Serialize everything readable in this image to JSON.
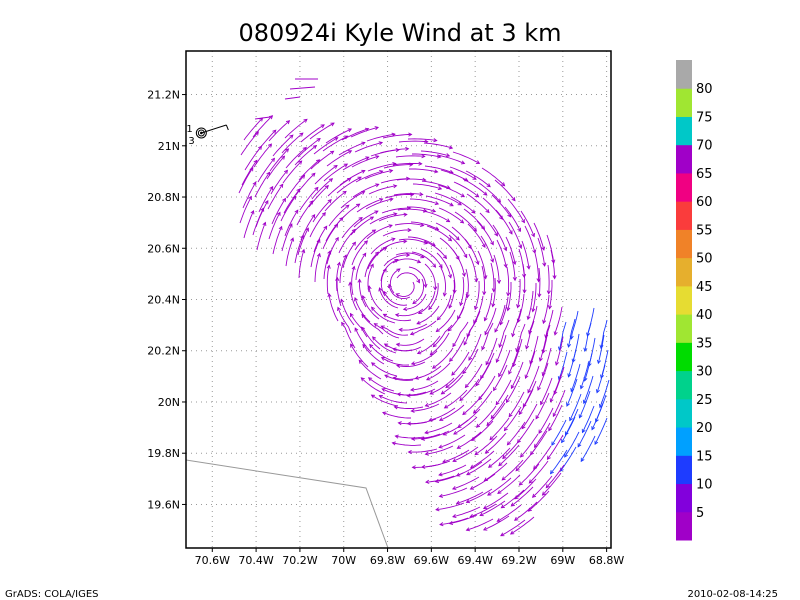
{
  "chart_data": {
    "type": "streamline",
    "title": "080924i Kyle Wind at 3 km",
    "x_ticks": [
      "70.6W",
      "70.4W",
      "70.2W",
      "70W",
      "69.8W",
      "69.6W",
      "69.4W",
      "69.2W",
      "69W",
      "68.8W"
    ],
    "x_tick_values": [
      -70.6,
      -70.4,
      -70.2,
      -70.0,
      -69.8,
      -69.6,
      -69.4,
      -69.2,
      -69.0,
      -68.8
    ],
    "y_ticks": [
      "21.2N",
      "21N",
      "20.8N",
      "20.6N",
      "20.4N",
      "20.2N",
      "20N",
      "19.8N",
      "19.6N"
    ],
    "y_tick_values": [
      21.2,
      21.0,
      20.8,
      20.6,
      20.4,
      20.2,
      20.0,
      19.8,
      19.6
    ],
    "xlim": [
      -70.72,
      -68.78
    ],
    "ylim": [
      19.43,
      21.37
    ],
    "grid": true,
    "storm_center": {
      "lon": -70.65,
      "lat": 21.05,
      "labels": [
        "1",
        "3"
      ]
    },
    "colorbar": {
      "labels": [
        "5",
        "10",
        "15",
        "20",
        "25",
        "30",
        "35",
        "40",
        "45",
        "50",
        "55",
        "60",
        "65",
        "70",
        "75",
        "80"
      ],
      "colors": [
        "#a000c8",
        "#8200dc",
        "#1e3cff",
        "#00a0ff",
        "#00c8c8",
        "#00d28c",
        "#00dc00",
        "#a0e632",
        "#e6dc32",
        "#e6af2d",
        "#f08228",
        "#fa3c3c",
        "#f00082",
        "#a000c8",
        "#00c8c8",
        "#a0e632",
        "#a9a9a9"
      ]
    },
    "wind_colors": {
      "light": "#a000c8",
      "moderate": "#1e3cff"
    }
  },
  "footer": {
    "left": "GrADS: COLA/IGES",
    "right": "2010-02-08-14:25"
  }
}
